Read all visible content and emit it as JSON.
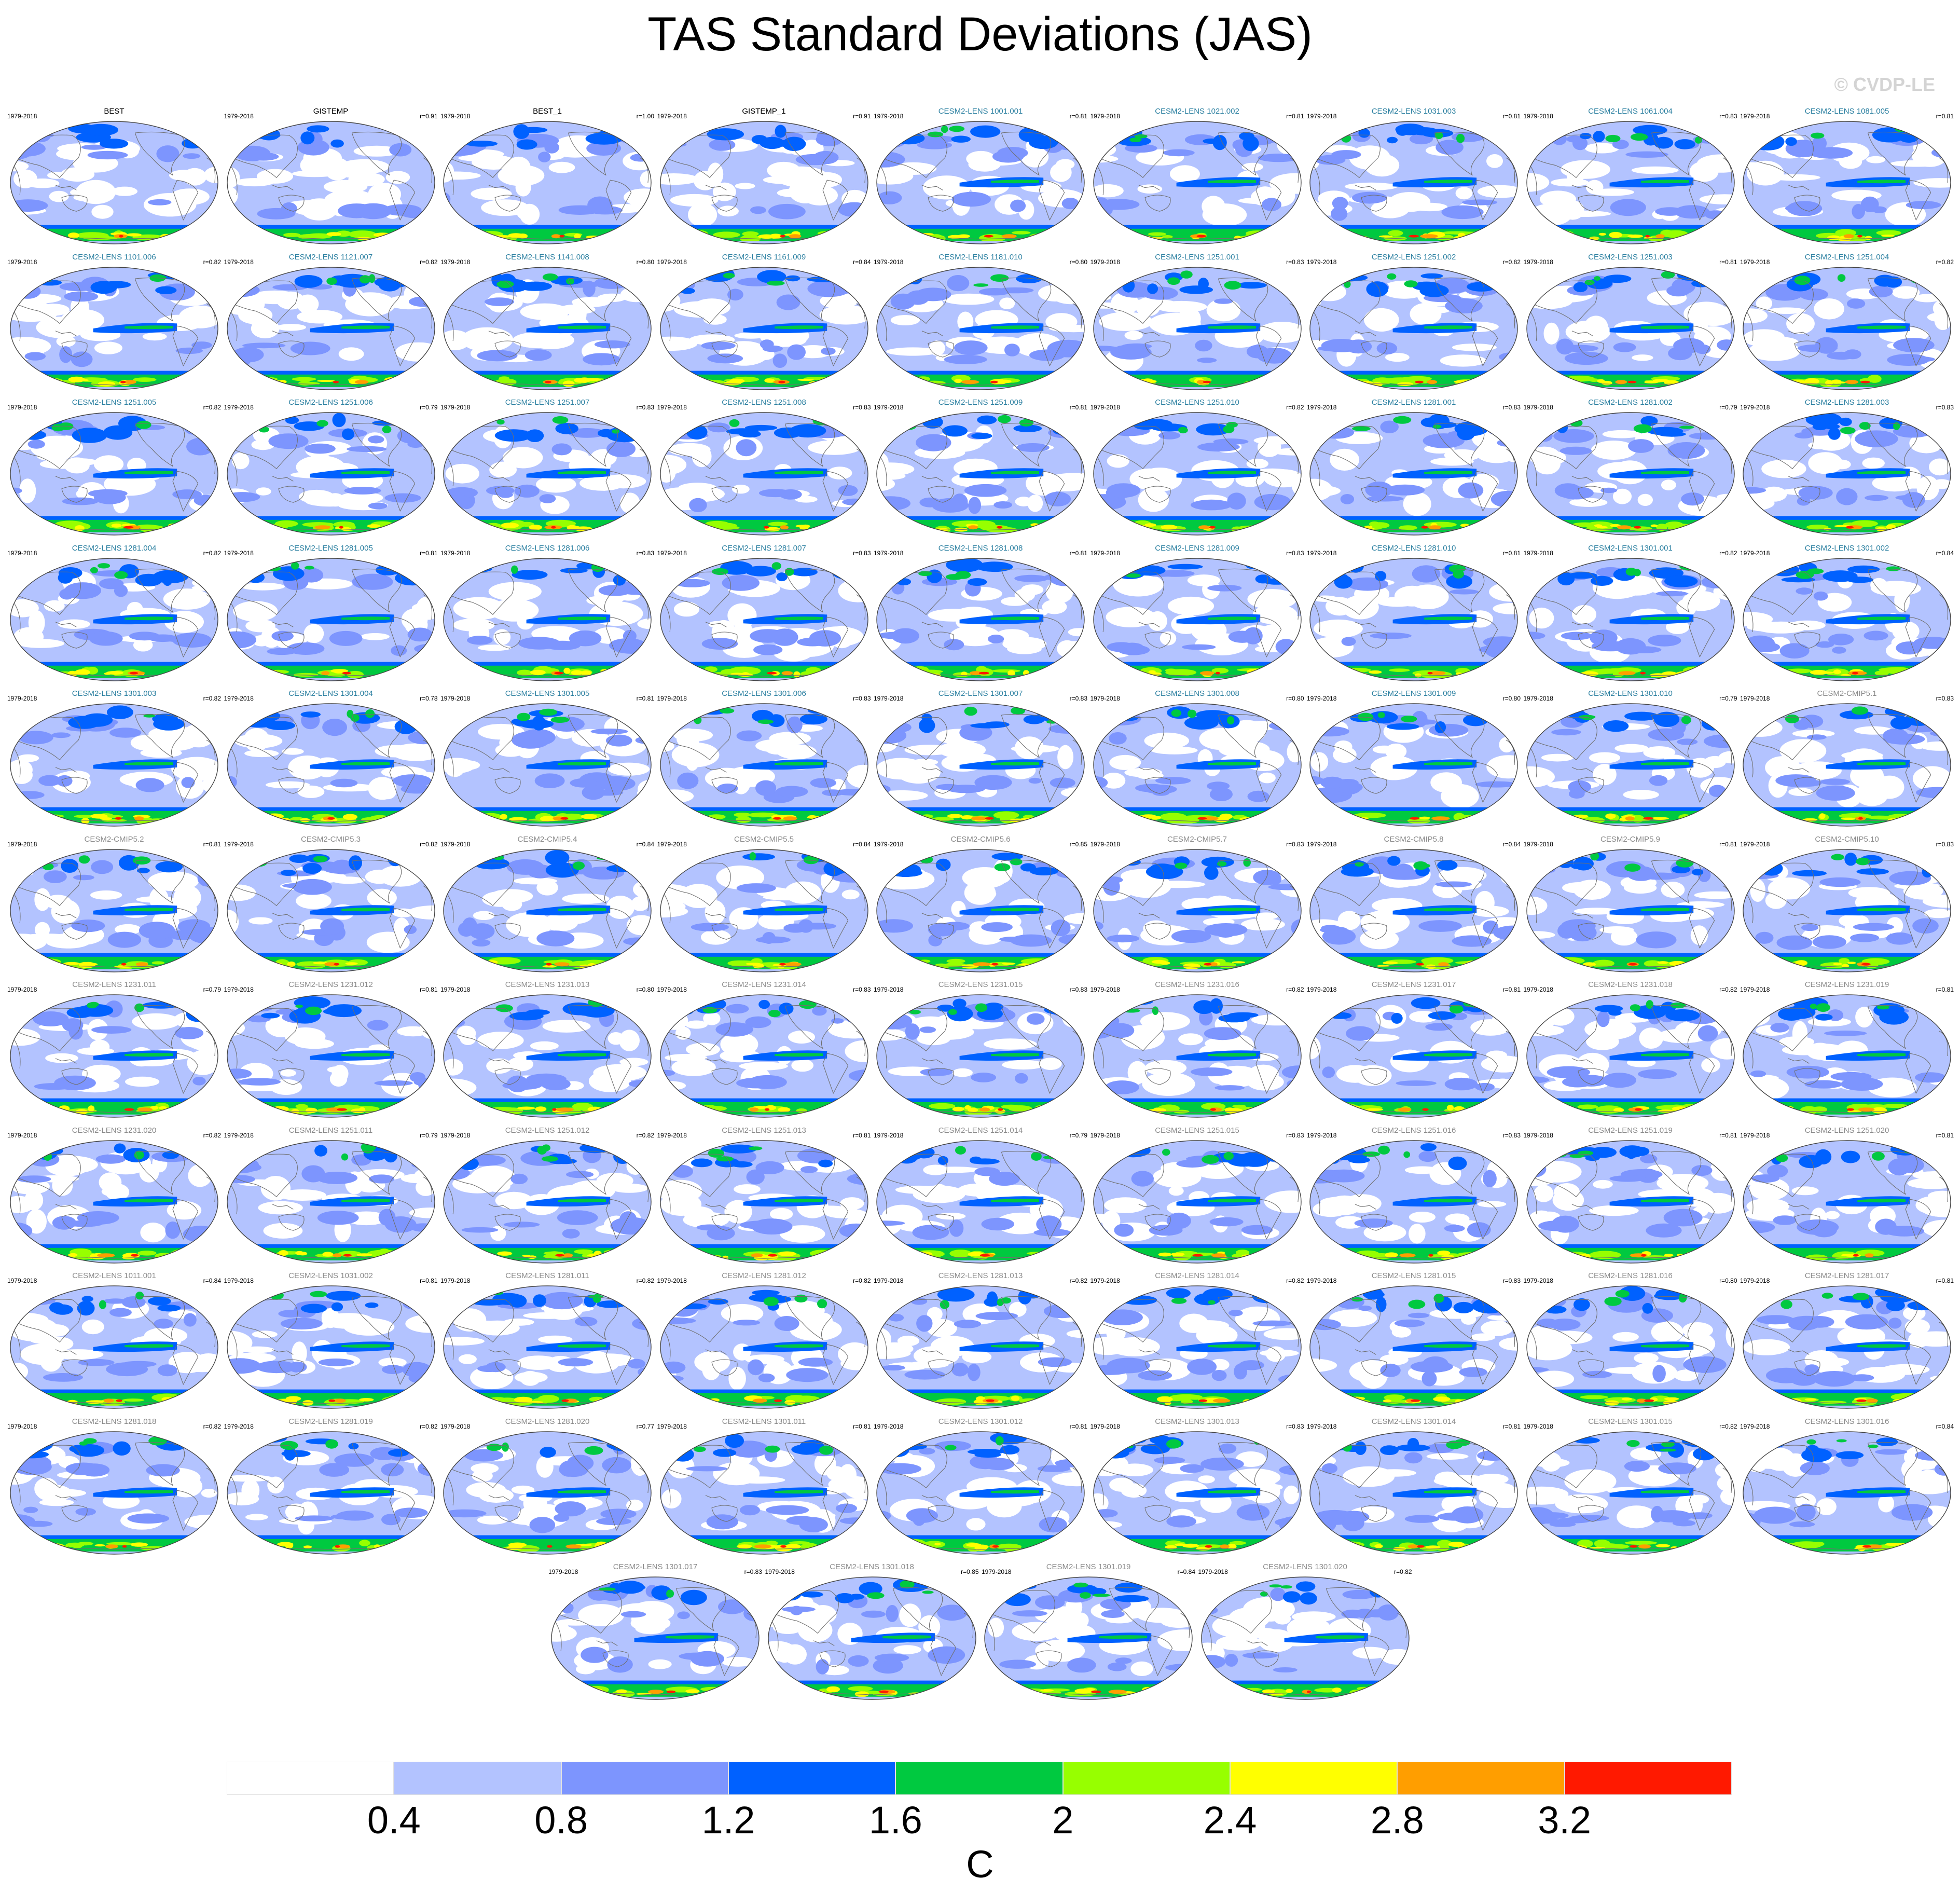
{
  "title": "TAS Standard Deviations (JAS)",
  "watermark": "© CVDP-LE",
  "colors": {
    "obs_title": "#000000",
    "lens_title": "#2a7fa0",
    "cmip_title": "#8a8a8a",
    "ocean_base": "#b9c8f8",
    "coast": "#6f6f6f"
  },
  "chart_data": {
    "type": "heatmap",
    "description_units": "C",
    "colorbar": {
      "levels": [
        "0.4",
        "0.8",
        "1.2",
        "1.6",
        "2",
        "2.4",
        "2.8",
        "3.2"
      ],
      "colors": [
        "#ffffff",
        "#b3c3ff",
        "#7d95fe",
        "#0061ff",
        "#00c940",
        "#97ff00",
        "#ffff00",
        "#ff9e00",
        "#ff1900"
      ],
      "units": "C"
    },
    "panels": [
      {
        "name": "BEST",
        "period": "1979-2018",
        "r": "",
        "group": "obs"
      },
      {
        "name": "GISTEMP",
        "period": "1979-2018",
        "r": "r=0.91",
        "group": "obs"
      },
      {
        "name": "BEST_1",
        "period": "1979-2018",
        "r": "r=1.00",
        "group": "obs"
      },
      {
        "name": "GISTEMP_1",
        "period": "1979-2018",
        "r": "r=0.91",
        "group": "obs"
      },
      {
        "name": "CESM2-LENS 1001.001",
        "period": "1979-2018",
        "r": "r=0.81",
        "group": "lens"
      },
      {
        "name": "CESM2-LENS 1021.002",
        "period": "1979-2018",
        "r": "r=0.81",
        "group": "lens"
      },
      {
        "name": "CESM2-LENS 1031.003",
        "period": "1979-2018",
        "r": "r=0.81",
        "group": "lens"
      },
      {
        "name": "CESM2-LENS 1061.004",
        "period": "1979-2018",
        "r": "r=0.83",
        "group": "lens"
      },
      {
        "name": "CESM2-LENS 1081.005",
        "period": "1979-2018",
        "r": "r=0.81",
        "group": "lens"
      },
      {
        "name": "CESM2-LENS 1101.006",
        "period": "1979-2018",
        "r": "r=0.82",
        "group": "lens"
      },
      {
        "name": "CESM2-LENS 1121.007",
        "period": "1979-2018",
        "r": "r=0.82",
        "group": "lens"
      },
      {
        "name": "CESM2-LENS 1141.008",
        "period": "1979-2018",
        "r": "r=0.80",
        "group": "lens"
      },
      {
        "name": "CESM2-LENS 1161.009",
        "period": "1979-2018",
        "r": "r=0.84",
        "group": "lens"
      },
      {
        "name": "CESM2-LENS 1181.010",
        "period": "1979-2018",
        "r": "r=0.80",
        "group": "lens"
      },
      {
        "name": "CESM2-LENS 1251.001",
        "period": "1979-2018",
        "r": "r=0.83",
        "group": "lens"
      },
      {
        "name": "CESM2-LENS 1251.002",
        "period": "1979-2018",
        "r": "r=0.82",
        "group": "lens"
      },
      {
        "name": "CESM2-LENS 1251.003",
        "period": "1979-2018",
        "r": "r=0.81",
        "group": "lens"
      },
      {
        "name": "CESM2-LENS 1251.004",
        "period": "1979-2018",
        "r": "r=0.82",
        "group": "lens"
      },
      {
        "name": "CESM2-LENS 1251.005",
        "period": "1979-2018",
        "r": "r=0.82",
        "group": "lens"
      },
      {
        "name": "CESM2-LENS 1251.006",
        "period": "1979-2018",
        "r": "r=0.79",
        "group": "lens"
      },
      {
        "name": "CESM2-LENS 1251.007",
        "period": "1979-2018",
        "r": "r=0.83",
        "group": "lens"
      },
      {
        "name": "CESM2-LENS 1251.008",
        "period": "1979-2018",
        "r": "r=0.83",
        "group": "lens"
      },
      {
        "name": "CESM2-LENS 1251.009",
        "period": "1979-2018",
        "r": "r=0.81",
        "group": "lens"
      },
      {
        "name": "CESM2-LENS 1251.010",
        "period": "1979-2018",
        "r": "r=0.82",
        "group": "lens"
      },
      {
        "name": "CESM2-LENS 1281.001",
        "period": "1979-2018",
        "r": "r=0.83",
        "group": "lens"
      },
      {
        "name": "CESM2-LENS 1281.002",
        "period": "1979-2018",
        "r": "r=0.79",
        "group": "lens"
      },
      {
        "name": "CESM2-LENS 1281.003",
        "period": "1979-2018",
        "r": "r=0.83",
        "group": "lens"
      },
      {
        "name": "CESM2-LENS 1281.004",
        "period": "1979-2018",
        "r": "r=0.82",
        "group": "lens"
      },
      {
        "name": "CESM2-LENS 1281.005",
        "period": "1979-2018",
        "r": "r=0.81",
        "group": "lens"
      },
      {
        "name": "CESM2-LENS 1281.006",
        "period": "1979-2018",
        "r": "r=0.83",
        "group": "lens"
      },
      {
        "name": "CESM2-LENS 1281.007",
        "period": "1979-2018",
        "r": "r=0.83",
        "group": "lens"
      },
      {
        "name": "CESM2-LENS 1281.008",
        "period": "1979-2018",
        "r": "r=0.81",
        "group": "lens"
      },
      {
        "name": "CESM2-LENS 1281.009",
        "period": "1979-2018",
        "r": "r=0.83",
        "group": "lens"
      },
      {
        "name": "CESM2-LENS 1281.010",
        "period": "1979-2018",
        "r": "r=0.81",
        "group": "lens"
      },
      {
        "name": "CESM2-LENS 1301.001",
        "period": "1979-2018",
        "r": "r=0.82",
        "group": "lens"
      },
      {
        "name": "CESM2-LENS 1301.002",
        "period": "1979-2018",
        "r": "r=0.84",
        "group": "lens"
      },
      {
        "name": "CESM2-LENS 1301.003",
        "period": "1979-2018",
        "r": "r=0.82",
        "group": "lens"
      },
      {
        "name": "CESM2-LENS 1301.004",
        "period": "1979-2018",
        "r": "r=0.78",
        "group": "lens"
      },
      {
        "name": "CESM2-LENS 1301.005",
        "period": "1979-2018",
        "r": "r=0.81",
        "group": "lens"
      },
      {
        "name": "CESM2-LENS 1301.006",
        "period": "1979-2018",
        "r": "r=0.83",
        "group": "lens"
      },
      {
        "name": "CESM2-LENS 1301.007",
        "period": "1979-2018",
        "r": "r=0.83",
        "group": "lens"
      },
      {
        "name": "CESM2-LENS 1301.008",
        "period": "1979-2018",
        "r": "r=0.80",
        "group": "lens"
      },
      {
        "name": "CESM2-LENS 1301.009",
        "period": "1979-2018",
        "r": "r=0.80",
        "group": "lens"
      },
      {
        "name": "CESM2-LENS 1301.010",
        "period": "1979-2018",
        "r": "r=0.79",
        "group": "lens"
      },
      {
        "name": "CESM2-CMIP5.1",
        "period": "1979-2018",
        "r": "r=0.83",
        "group": "cmip"
      },
      {
        "name": "CESM2-CMIP5.2",
        "period": "1979-2018",
        "r": "r=0.81",
        "group": "cmip"
      },
      {
        "name": "CESM2-CMIP5.3",
        "period": "1979-2018",
        "r": "r=0.82",
        "group": "cmip"
      },
      {
        "name": "CESM2-CMIP5.4",
        "period": "1979-2018",
        "r": "r=0.84",
        "group": "cmip"
      },
      {
        "name": "CESM2-CMIP5.5",
        "period": "1979-2018",
        "r": "r=0.84",
        "group": "cmip"
      },
      {
        "name": "CESM2-CMIP5.6",
        "period": "1979-2018",
        "r": "r=0.85",
        "group": "cmip"
      },
      {
        "name": "CESM2-CMIP5.7",
        "period": "1979-2018",
        "r": "r=0.83",
        "group": "cmip"
      },
      {
        "name": "CESM2-CMIP5.8",
        "period": "1979-2018",
        "r": "r=0.84",
        "group": "cmip"
      },
      {
        "name": "CESM2-CMIP5.9",
        "period": "1979-2018",
        "r": "r=0.81",
        "group": "cmip"
      },
      {
        "name": "CESM2-CMIP5.10",
        "period": "1979-2018",
        "r": "r=0.83",
        "group": "cmip"
      },
      {
        "name": "CESM2-LENS 1231.011",
        "period": "1979-2018",
        "r": "r=0.79",
        "group": "cmip"
      },
      {
        "name": "CESM2-LENS 1231.012",
        "period": "1979-2018",
        "r": "r=0.81",
        "group": "cmip"
      },
      {
        "name": "CESM2-LENS 1231.013",
        "period": "1979-2018",
        "r": "r=0.80",
        "group": "cmip"
      },
      {
        "name": "CESM2-LENS 1231.014",
        "period": "1979-2018",
        "r": "r=0.83",
        "group": "cmip"
      },
      {
        "name": "CESM2-LENS 1231.015",
        "period": "1979-2018",
        "r": "r=0.83",
        "group": "cmip"
      },
      {
        "name": "CESM2-LENS 1231.016",
        "period": "1979-2018",
        "r": "r=0.82",
        "group": "cmip"
      },
      {
        "name": "CESM2-LENS 1231.017",
        "period": "1979-2018",
        "r": "r=0.81",
        "group": "cmip"
      },
      {
        "name": "CESM2-LENS 1231.018",
        "period": "1979-2018",
        "r": "r=0.82",
        "group": "cmip"
      },
      {
        "name": "CESM2-LENS 1231.019",
        "period": "1979-2018",
        "r": "r=0.81",
        "group": "cmip"
      },
      {
        "name": "CESM2-LENS 1231.020",
        "period": "1979-2018",
        "r": "r=0.82",
        "group": "cmip"
      },
      {
        "name": "CESM2-LENS 1251.011",
        "period": "1979-2018",
        "r": "r=0.79",
        "group": "cmip"
      },
      {
        "name": "CESM2-LENS 1251.012",
        "period": "1979-2018",
        "r": "r=0.82",
        "group": "cmip"
      },
      {
        "name": "CESM2-LENS 1251.013",
        "period": "1979-2018",
        "r": "r=0.81",
        "group": "cmip"
      },
      {
        "name": "CESM2-LENS 1251.014",
        "period": "1979-2018",
        "r": "r=0.79",
        "group": "cmip"
      },
      {
        "name": "CESM2-LENS 1251.015",
        "period": "1979-2018",
        "r": "r=0.83",
        "group": "cmip"
      },
      {
        "name": "CESM2-LENS 1251.016",
        "period": "1979-2018",
        "r": "r=0.83",
        "group": "cmip"
      },
      {
        "name": "CESM2-LENS 1251.019",
        "period": "1979-2018",
        "r": "r=0.81",
        "group": "cmip"
      },
      {
        "name": "CESM2-LENS 1251.020",
        "period": "1979-2018",
        "r": "r=0.81",
        "group": "cmip"
      },
      {
        "name": "CESM2-LENS 1011.001",
        "period": "1979-2018",
        "r": "r=0.84",
        "group": "cmip"
      },
      {
        "name": "CESM2-LENS 1031.002",
        "period": "1979-2018",
        "r": "r=0.81",
        "group": "cmip"
      },
      {
        "name": "CESM2-LENS 1281.011",
        "period": "1979-2018",
        "r": "r=0.82",
        "group": "cmip"
      },
      {
        "name": "CESM2-LENS 1281.012",
        "period": "1979-2018",
        "r": "r=0.82",
        "group": "cmip"
      },
      {
        "name": "CESM2-LENS 1281.013",
        "period": "1979-2018",
        "r": "r=0.82",
        "group": "cmip"
      },
      {
        "name": "CESM2-LENS 1281.014",
        "period": "1979-2018",
        "r": "r=0.82",
        "group": "cmip"
      },
      {
        "name": "CESM2-LENS 1281.015",
        "period": "1979-2018",
        "r": "r=0.83",
        "group": "cmip"
      },
      {
        "name": "CESM2-LENS 1281.016",
        "period": "1979-2018",
        "r": "r=0.80",
        "group": "cmip"
      },
      {
        "name": "CESM2-LENS 1281.017",
        "period": "1979-2018",
        "r": "r=0.81",
        "group": "cmip"
      },
      {
        "name": "CESM2-LENS 1281.018",
        "period": "1979-2018",
        "r": "r=0.82",
        "group": "cmip"
      },
      {
        "name": "CESM2-LENS 1281.019",
        "period": "1979-2018",
        "r": "r=0.82",
        "group": "cmip"
      },
      {
        "name": "CESM2-LENS 1281.020",
        "period": "1979-2018",
        "r": "r=0.77",
        "group": "cmip"
      },
      {
        "name": "CESM2-LENS 1301.011",
        "period": "1979-2018",
        "r": "r=0.81",
        "group": "cmip"
      },
      {
        "name": "CESM2-LENS 1301.012",
        "period": "1979-2018",
        "r": "r=0.81",
        "group": "cmip"
      },
      {
        "name": "CESM2-LENS 1301.013",
        "period": "1979-2018",
        "r": "r=0.83",
        "group": "cmip"
      },
      {
        "name": "CESM2-LENS 1301.014",
        "period": "1979-2018",
        "r": "r=0.81",
        "group": "cmip"
      },
      {
        "name": "CESM2-LENS 1301.015",
        "period": "1979-2018",
        "r": "r=0.82",
        "group": "cmip"
      },
      {
        "name": "CESM2-LENS 1301.016",
        "period": "1979-2018",
        "r": "r=0.84",
        "group": "cmip"
      },
      {
        "name": "CESM2-LENS 1301.017",
        "period": "1979-2018",
        "r": "r=0.83",
        "group": "cmip"
      },
      {
        "name": "CESM2-LENS 1301.018",
        "period": "1979-2018",
        "r": "r=0.85",
        "group": "cmip"
      },
      {
        "name": "CESM2-LENS 1301.019",
        "period": "1979-2018",
        "r": "r=0.84",
        "group": "cmip"
      },
      {
        "name": "CESM2-LENS 1301.020",
        "period": "1979-2018",
        "r": "r=0.82",
        "group": "cmip"
      }
    ]
  }
}
